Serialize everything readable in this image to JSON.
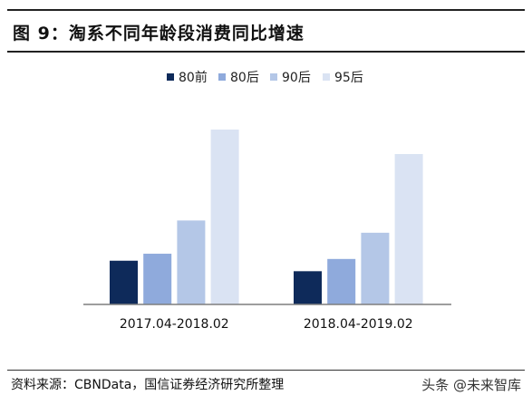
{
  "header": {
    "title": "图 9：淘系不同年龄段消费同比增速"
  },
  "chart_data": {
    "type": "bar",
    "title": "",
    "xlabel": "",
    "ylabel": "",
    "categories": [
      "2017.04-2018.02",
      "2018.04-2019.02"
    ],
    "series": [
      {
        "name": "80前",
        "color": "#0e2a5a",
        "values": [
          0.25,
          0.19
        ]
      },
      {
        "name": "80后",
        "color": "#8faadc",
        "values": [
          0.29,
          0.26
        ]
      },
      {
        "name": "90后",
        "color": "#b4c7e7",
        "values": [
          0.48,
          0.41
        ]
      },
      {
        "name": "95后",
        "color": "#dae3f3",
        "values": [
          1.0,
          0.86
        ]
      }
    ],
    "ylim": [
      0,
      1.0
    ],
    "grid": false,
    "legend_position": "top-center"
  },
  "footer": {
    "source": "资料来源：CBNData，国信证券经济研究所整理",
    "watermark": "头条 @未来智库"
  }
}
